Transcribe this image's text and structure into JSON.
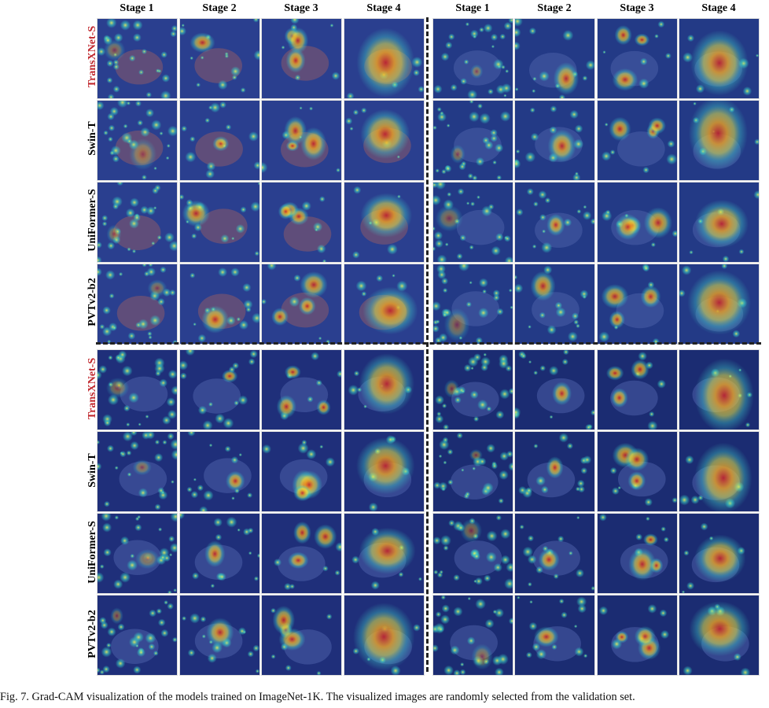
{
  "stage_headers_left": [
    "Stage 1",
    "Stage 2",
    "Stage 3",
    "Stage 4"
  ],
  "stage_headers_right": [
    "Stage 1",
    "Stage 2",
    "Stage 3",
    "Stage 4"
  ],
  "row_labels_top": [
    "TransXNet-S",
    "Swin-T",
    "UniFormer-S",
    "PVTv2-b2"
  ],
  "row_labels_bottom": [
    "TransXNet-S",
    "Swin-T",
    "UniFormer-S",
    "PVTv2-b2"
  ],
  "highlight_color": "#c0272d",
  "caption": "Fig. 7.  Grad-CAM visualization of the models trained on ImageNet-1K. The visualized images are randomly selected from the validation set."
}
